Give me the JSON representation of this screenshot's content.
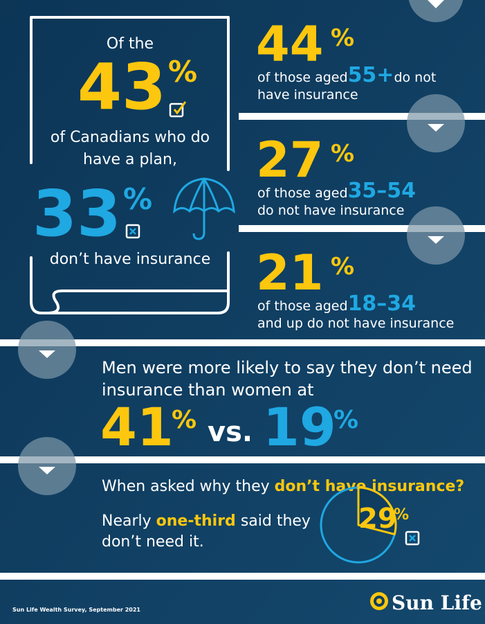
{
  "left_panel": {
    "intro": "Of the",
    "stat": {
      "value": "43",
      "sign": "%"
    },
    "text": [
      "of Canadians who do",
      "have a plan,"
    ],
    "stat2": {
      "value": "33",
      "sign": "%"
    },
    "text2": "don’t have insurance"
  },
  "age_panels": [
    {
      "value": "44",
      "sign": "%",
      "prefix": "of those aged",
      "age": "55+",
      "suffix": "do not",
      "line2": "have insurance"
    },
    {
      "value": "27",
      "sign": "%",
      "prefix": "of those aged",
      "age": "35–54",
      "line2": "do not have insurance"
    },
    {
      "value": "21",
      "sign": "%",
      "prefix": "of those aged",
      "age": "18–34",
      "line2": "and up do not have insurance"
    }
  ],
  "gender": {
    "text": [
      "Men were more likely to say they don’t need",
      "insurance than women at"
    ],
    "men": {
      "value": "41",
      "sign": "%"
    },
    "vs": "vs.",
    "women": {
      "value": "19",
      "sign": "%"
    }
  },
  "reasons": {
    "question_prefix": "When asked why they",
    "question_highlight": "don’t have insurance?",
    "answer_prefix": "Nearly",
    "answer_highlight": "one-third",
    "answer_suffix": "said they",
    "answer_line2": "don’t need it.",
    "pie": {
      "value": 29,
      "sign": "%"
    }
  },
  "footer": {
    "source": "Sun Life Wealth Survey, September 2021",
    "logo": "Sun Life"
  }
}
